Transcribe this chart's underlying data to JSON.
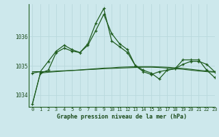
{
  "title": "Graphe pression niveau de la mer (hPa)",
  "background_color": "#cde8ec",
  "grid_color": "#b8d8dc",
  "line_color": "#1e5c1e",
  "text_color": "#1a4a1a",
  "xlim": [
    -0.5,
    23
  ],
  "ylim": [
    1033.6,
    1037.1
  ],
  "yticks": [
    1034,
    1035,
    1036
  ],
  "xticks": [
    0,
    1,
    2,
    3,
    4,
    5,
    6,
    7,
    8,
    9,
    10,
    11,
    12,
    13,
    14,
    15,
    16,
    17,
    18,
    19,
    20,
    21,
    22,
    23
  ],
  "series": [
    [
      1033.7,
      1034.75,
      1034.85,
      1035.45,
      1035.6,
      1035.5,
      1035.45,
      1035.7,
      1036.2,
      1036.75,
      1036.1,
      1035.75,
      1035.55,
      1035.0,
      1034.85,
      1034.75,
      1034.55,
      1034.85,
      1034.9,
      1035.2,
      1035.2,
      1035.2,
      1034.85,
      1034.6
    ],
    [
      1034.75,
      1034.8,
      1035.15,
      1035.5,
      1035.7,
      1035.55,
      1035.45,
      1035.75,
      1036.45,
      1036.95,
      1035.85,
      1035.65,
      1035.45,
      1035.0,
      1034.8,
      1034.7,
      1034.8,
      1034.85,
      1034.9,
      1035.05,
      1035.15,
      1035.15,
      1035.05,
      1034.8
    ],
    [
      1034.8,
      1034.8,
      1034.8,
      1034.82,
      1034.83,
      1034.84,
      1034.85,
      1034.87,
      1034.88,
      1034.9,
      1034.91,
      1034.92,
      1034.93,
      1034.94,
      1034.95,
      1034.95,
      1034.94,
      1034.92,
      1034.9,
      1034.88,
      1034.85,
      1034.82,
      1034.8,
      1034.78
    ],
    [
      1033.7,
      1034.75,
      1034.78,
      1034.8,
      1034.82,
      1034.84,
      1034.86,
      1034.88,
      1034.9,
      1034.92,
      1034.93,
      1034.95,
      1034.96,
      1034.97,
      1034.97,
      1034.97,
      1034.96,
      1034.95,
      1034.93,
      1034.91,
      1034.88,
      1034.85,
      1034.82,
      1034.8
    ]
  ]
}
